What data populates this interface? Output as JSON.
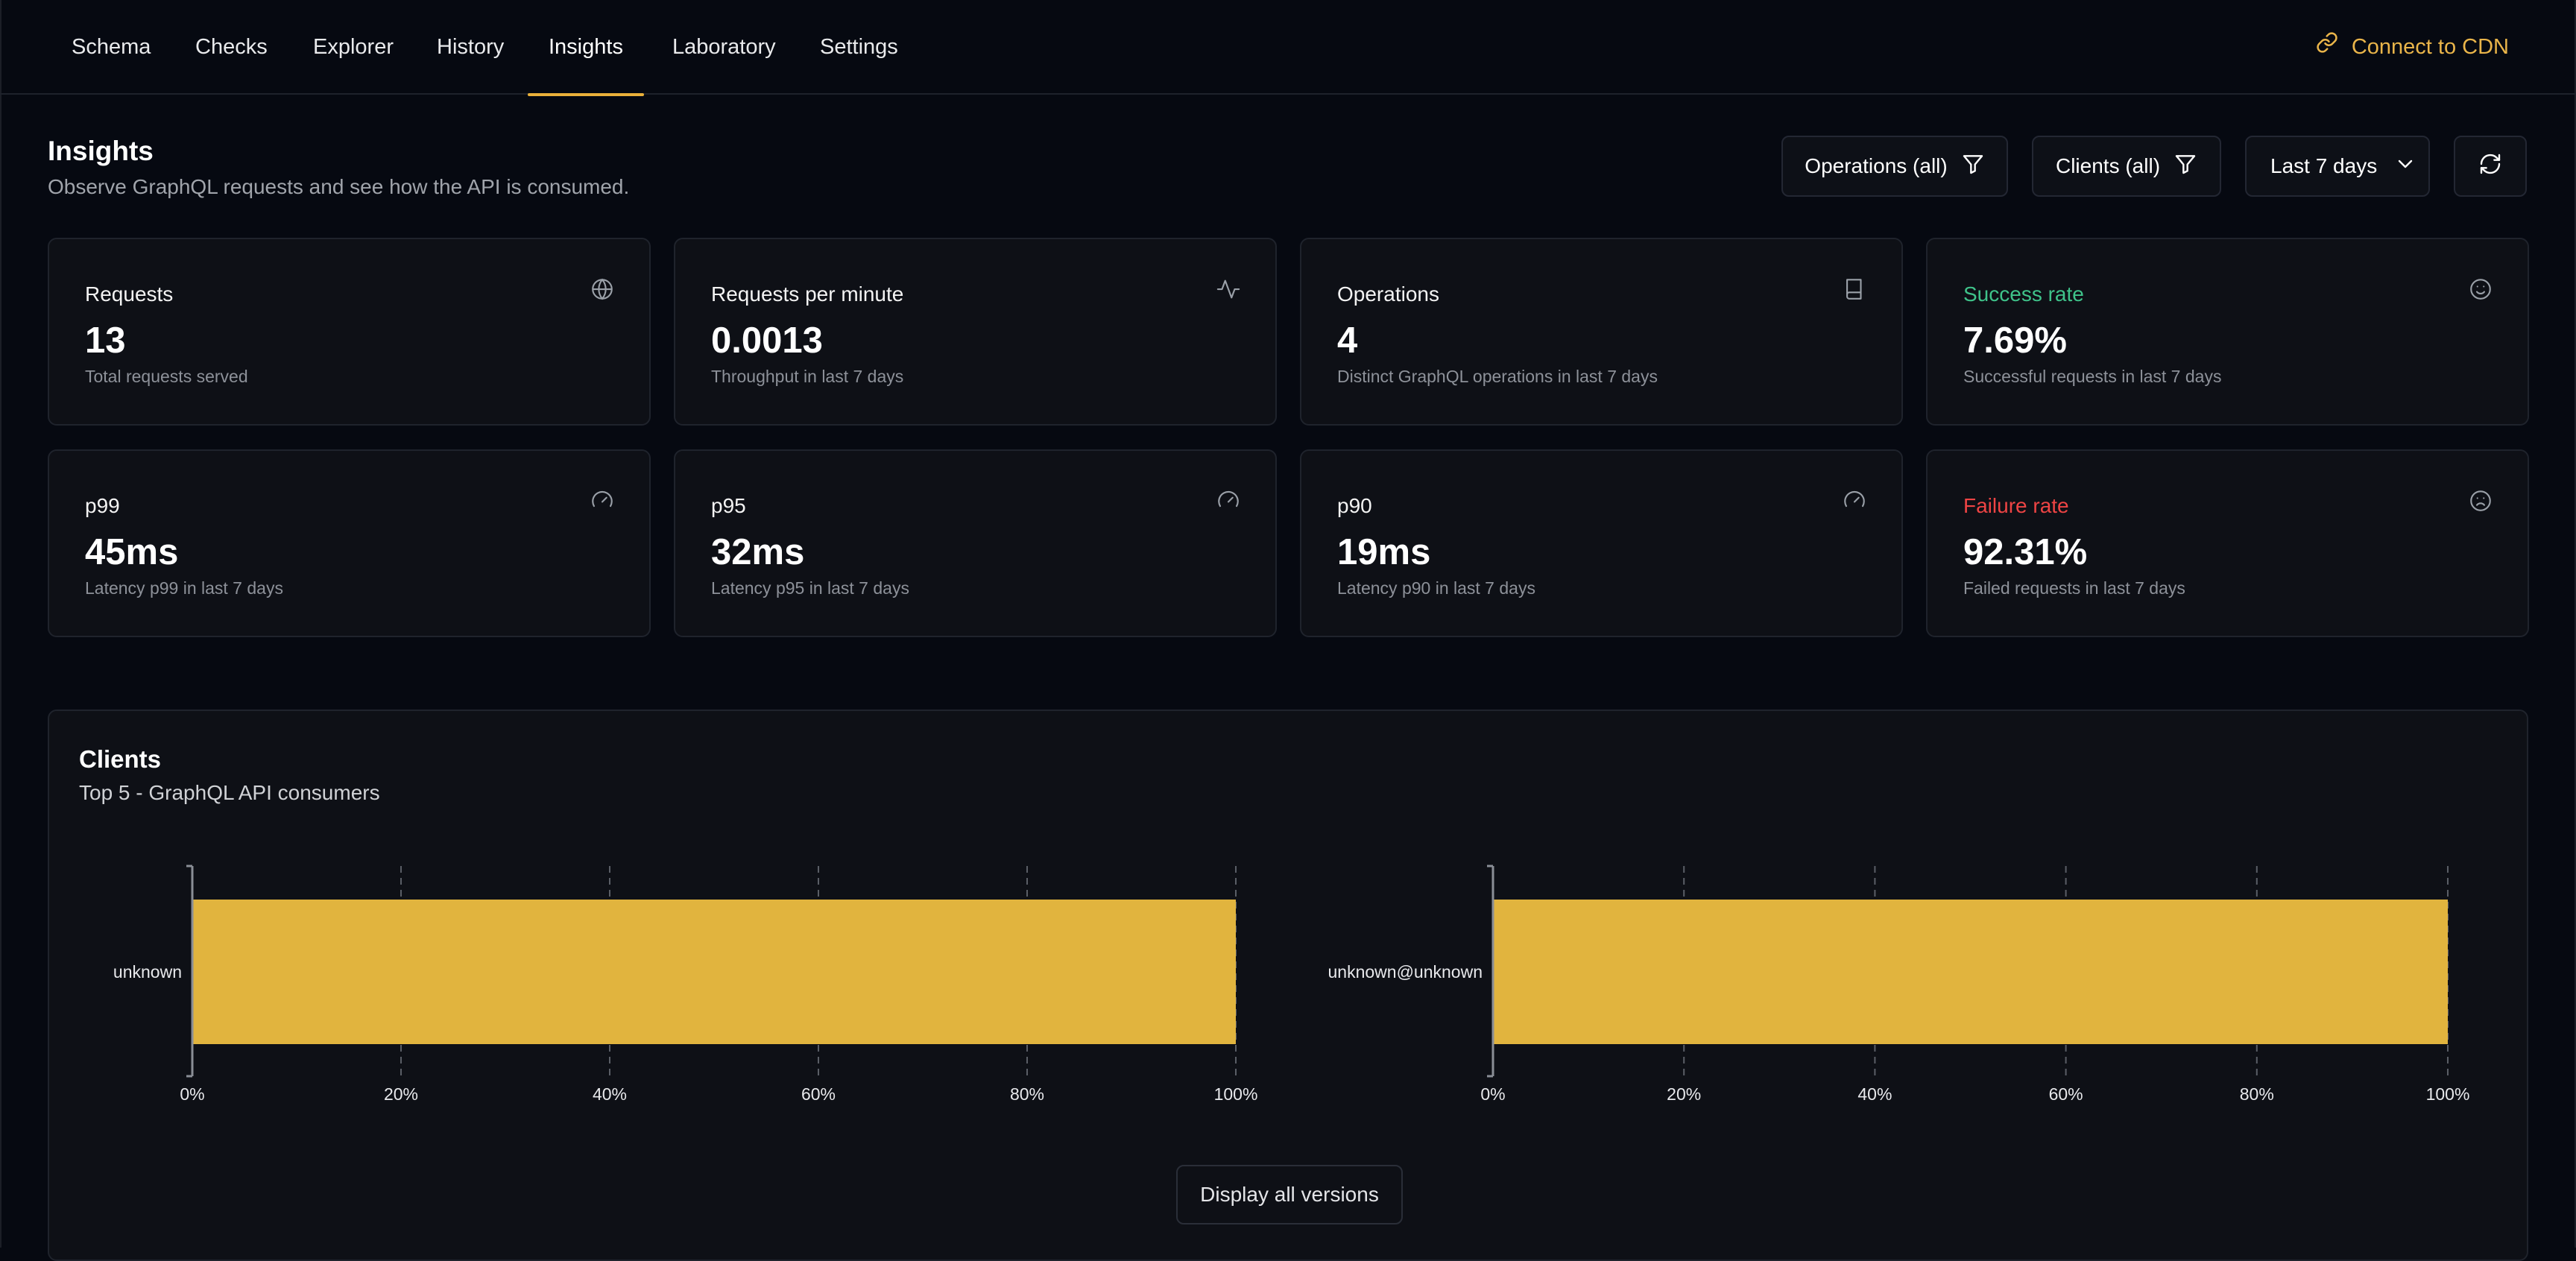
{
  "nav": {
    "tabs": [
      {
        "label": "Schema"
      },
      {
        "label": "Checks"
      },
      {
        "label": "Explorer"
      },
      {
        "label": "History"
      },
      {
        "label": "Insights",
        "active": true
      },
      {
        "label": "Laboratory"
      },
      {
        "label": "Settings"
      }
    ],
    "cdn_link": "Connect to CDN"
  },
  "header": {
    "title": "Insights",
    "subtitle": "Observe GraphQL requests and see how the API is consumed."
  },
  "filters": {
    "operations": "Operations (all)",
    "clients": "Clients (all)",
    "period": "Last 7 days",
    "refresh_icon": "refresh-icon"
  },
  "stats": [
    {
      "label": "Requests",
      "value": "13",
      "desc": "Total requests served",
      "icon": "globe-icon"
    },
    {
      "label": "Requests per minute",
      "value": "0.0013",
      "desc": "Throughput in last 7 days",
      "icon": "activity-icon"
    },
    {
      "label": "Operations",
      "value": "4",
      "desc": "Distinct GraphQL operations in last 7 days",
      "icon": "book-icon"
    },
    {
      "label": "Success rate",
      "value": "7.69%",
      "desc": "Successful requests in last 7 days",
      "icon": "smile-icon"
    },
    {
      "label": "p99",
      "value": "45ms",
      "desc": "Latency p99 in last 7 days",
      "icon": "gauge-icon"
    },
    {
      "label": "p95",
      "value": "32ms",
      "desc": "Latency p95 in last 7 days",
      "icon": "gauge-icon"
    },
    {
      "label": "p90",
      "value": "19ms",
      "desc": "Latency p90 in last 7 days",
      "icon": "gauge-icon"
    },
    {
      "label": "Failure rate",
      "value": "92.31%",
      "desc": "Failed requests in last 7 days",
      "icon": "frown-icon"
    }
  ],
  "colors": {
    "accent": "#e9b03a",
    "bar": "#e1b43e",
    "success": "#3fc38a",
    "failure": "#ee4444"
  },
  "clients_panel": {
    "title": "Clients",
    "subtitle": "Top 5 - GraphQL API consumers",
    "button": "Display all versions"
  },
  "chart_data": [
    {
      "type": "bar",
      "orientation": "horizontal",
      "categories": [
        "unknown"
      ],
      "values": [
        100
      ],
      "xlim": [
        0,
        100
      ],
      "xticks": [
        "0%",
        "20%",
        "40%",
        "60%",
        "80%",
        "100%"
      ]
    },
    {
      "type": "bar",
      "orientation": "horizontal",
      "categories": [
        "unknown@unknown"
      ],
      "values": [
        100
      ],
      "xlim": [
        0,
        100
      ],
      "xticks": [
        "0%",
        "20%",
        "40%",
        "60%",
        "80%",
        "100%"
      ]
    }
  ]
}
